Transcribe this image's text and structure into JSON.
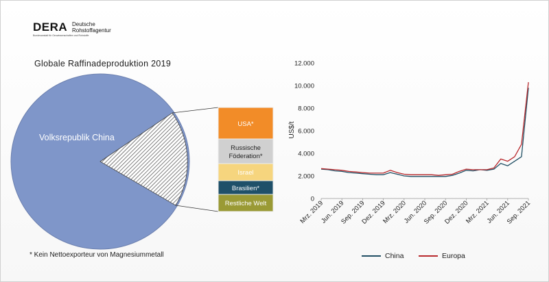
{
  "logo": {
    "mark": "DERA",
    "line1": "Deutsche",
    "line2": "Rohstoffagentur",
    "sub": "Bundesanstalt für Geowissenschaften und Rohstoffe"
  },
  "pie": {
    "title": "Globale Raffinadeproduktion 2019",
    "main_label": "Volksrepublik China",
    "main_color": "#7f96c9",
    "breakout": [
      {
        "label": "USA*",
        "color": "#f28c28"
      },
      {
        "label": "Russische Föderation*",
        "color": "#d0d0d0"
      },
      {
        "label": "Israel",
        "color": "#f6d57e"
      },
      {
        "label": "Brasilien*",
        "color": "#1f5069"
      },
      {
        "label": "Restliche Welt",
        "color": "#9a9a35"
      }
    ]
  },
  "footnote": "* Kein Nettoexporteur von Magnesiummetall",
  "chart_data": {
    "type": "line",
    "title": "",
    "xlabel": "",
    "ylabel": "US$/t",
    "ylim": [
      0,
      12000
    ],
    "yticks": [
      "0",
      "2.000",
      "4.000",
      "6.000",
      "8.000",
      "10.000",
      "12.000"
    ],
    "x_tick_labels": [
      "Mrz. 2019",
      "Jun. 2019",
      "Sep. 2019",
      "Dez. 2019",
      "Mrz. 2020",
      "Jun. 2020",
      "Sep. 2020",
      "Dez. 2020",
      "Mrz. 2021",
      "Jun. 2021",
      "Sep. 2021"
    ],
    "x": [
      "2019-03",
      "2019-04",
      "2019-05",
      "2019-06",
      "2019-07",
      "2019-08",
      "2019-09",
      "2019-10",
      "2019-11",
      "2019-12",
      "2020-01",
      "2020-02",
      "2020-03",
      "2020-04",
      "2020-05",
      "2020-06",
      "2020-07",
      "2020-08",
      "2020-09",
      "2020-10",
      "2020-11",
      "2020-12",
      "2021-01",
      "2021-02",
      "2021-03",
      "2021-04",
      "2021-05",
      "2021-06",
      "2021-07",
      "2021-08",
      "2021-09"
    ],
    "series": [
      {
        "name": "China",
        "color": "#1f4e63",
        "values": [
          2600,
          2550,
          2450,
          2400,
          2300,
          2250,
          2200,
          2150,
          2100,
          2100,
          2300,
          2150,
          2000,
          1950,
          1950,
          1950,
          1950,
          1950,
          1950,
          2050,
          2250,
          2500,
          2450,
          2550,
          2500,
          2600,
          3100,
          2900,
          3300,
          3700,
          9800
        ]
      },
      {
        "name": "Europa",
        "color": "#b8282c",
        "values": [
          2650,
          2600,
          2550,
          2500,
          2400,
          2350,
          2300,
          2250,
          2250,
          2250,
          2500,
          2300,
          2150,
          2100,
          2100,
          2100,
          2100,
          2050,
          2100,
          2150,
          2400,
          2600,
          2550,
          2550,
          2550,
          2700,
          3500,
          3300,
          3700,
          4800,
          10300
        ]
      }
    ],
    "grid": false,
    "legend": "bottom"
  }
}
